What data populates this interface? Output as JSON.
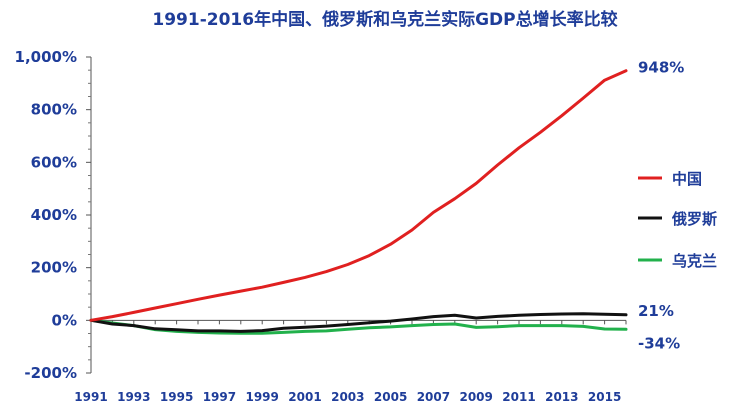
{
  "chart_data": {
    "type": "line",
    "title": "1991-2016年中国、俄罗斯和乌克兰实际GDP总增长率比较",
    "xlabel": "",
    "ylabel": "",
    "xlim": [
      1991,
      2016
    ],
    "ylim": [
      -200,
      1000
    ],
    "y_ticks": [
      -200,
      0,
      200,
      400,
      600,
      800,
      1000
    ],
    "y_tick_labels": [
      "-200%",
      "0%",
      "200%",
      "400%",
      "600%",
      "800%",
      "1,000%"
    ],
    "x_tick_labels": [
      "1991",
      "1993",
      "1995",
      "1997",
      "1999",
      "2001",
      "2003",
      "2005",
      "2007",
      "2009",
      "2011",
      "2013",
      "2015"
    ],
    "x": [
      1991,
      1992,
      1993,
      1994,
      1995,
      1996,
      1997,
      1998,
      1999,
      2000,
      2001,
      2002,
      2003,
      2004,
      2005,
      2006,
      2007,
      2008,
      2009,
      2010,
      2011,
      2012,
      2013,
      2014,
      2015,
      2016
    ],
    "legend_position": "right",
    "grid": false,
    "series": [
      {
        "name": "中国",
        "color": "#e02020",
        "values": [
          0,
          14,
          30,
          47,
          63,
          80,
          96,
          111,
          126,
          144,
          163,
          185,
          212,
          246,
          289,
          343,
          410,
          462,
          520,
          590,
          655,
          714,
          777,
          844,
          912,
          948
        ],
        "end_label": "948%"
      },
      {
        "name": "俄罗斯",
        "color": "#111111",
        "values": [
          0,
          -14,
          -20,
          -32,
          -36,
          -40,
          -40,
          -42,
          -39,
          -30,
          -26,
          -22,
          -16,
          -9,
          -3,
          5,
          14,
          19,
          9,
          15,
          19,
          22,
          24,
          25,
          23,
          21
        ],
        "end_label": "21%"
      },
      {
        "name": "乌克兰",
        "color": "#22b14c",
        "values": [
          0,
          -10,
          -20,
          -35,
          -42,
          -46,
          -48,
          -49,
          -49,
          -46,
          -42,
          -40,
          -34,
          -28,
          -25,
          -20,
          -16,
          -14,
          -27,
          -24,
          -20,
          -20,
          -20,
          -23,
          -33,
          -34
        ],
        "end_label": "-34%"
      }
    ]
  }
}
